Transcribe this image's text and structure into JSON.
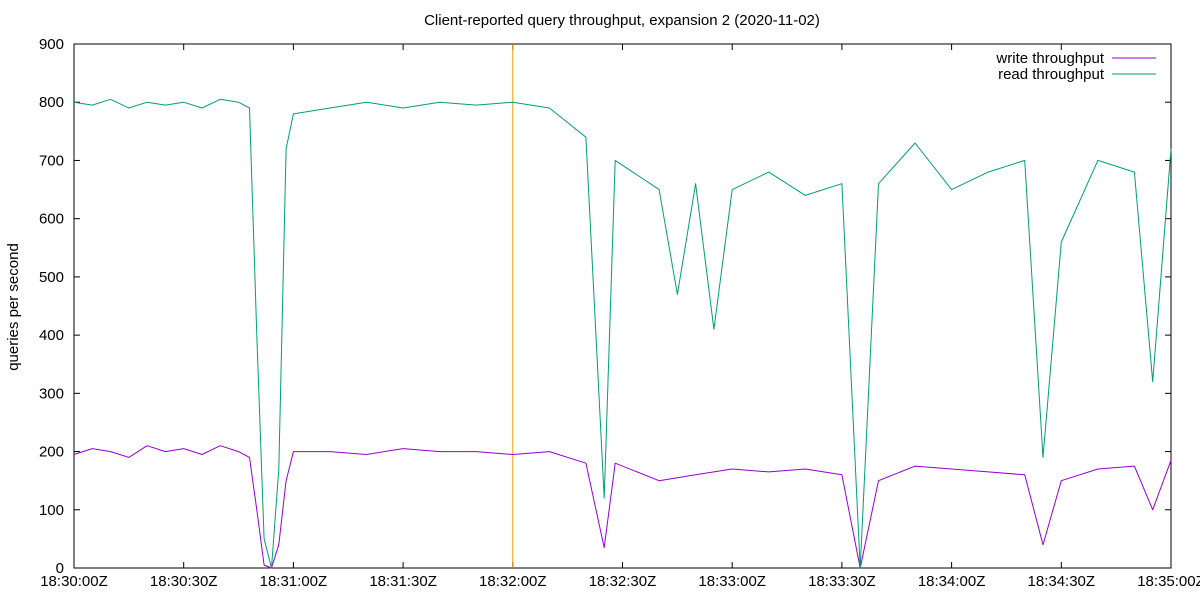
{
  "chart_data": {
    "type": "line",
    "title": "Client-reported query throughput, expansion 2 (2020-11-02)",
    "xlabel": "",
    "ylabel": "queries per second",
    "x_range": [
      "18:30:00Z",
      "18:35:00Z"
    ],
    "ylim": [
      0,
      900
    ],
    "y_ticks": [
      0,
      100,
      200,
      300,
      400,
      500,
      600,
      700,
      800,
      900
    ],
    "x_ticks": [
      "18:30:00Z",
      "18:30:30Z",
      "18:31:00Z",
      "18:31:30Z",
      "18:32:00Z",
      "18:32:30Z",
      "18:33:00Z",
      "18:33:30Z",
      "18:34:00Z",
      "18:34:30Z",
      "18:35:00Z"
    ],
    "grid": false,
    "legend_position": "top-right",
    "marker_line": {
      "x": "18:32:00Z",
      "color": "#e69f00"
    },
    "series": [
      {
        "name": "write throughput",
        "color": "#9400d3",
        "points": [
          [
            "18:30:00Z",
            195
          ],
          [
            "18:30:05Z",
            205
          ],
          [
            "18:30:10Z",
            200
          ],
          [
            "18:30:15Z",
            190
          ],
          [
            "18:30:20Z",
            210
          ],
          [
            "18:30:25Z",
            200
          ],
          [
            "18:30:30Z",
            205
          ],
          [
            "18:30:35Z",
            195
          ],
          [
            "18:30:40Z",
            210
          ],
          [
            "18:30:45Z",
            200
          ],
          [
            "18:30:48Z",
            190
          ],
          [
            "18:30:50Z",
            100
          ],
          [
            "18:30:52Z",
            5
          ],
          [
            "18:30:54Z",
            0
          ],
          [
            "18:30:56Z",
            40
          ],
          [
            "18:30:58Z",
            150
          ],
          [
            "18:31:00Z",
            200
          ],
          [
            "18:31:10Z",
            200
          ],
          [
            "18:31:20Z",
            195
          ],
          [
            "18:31:30Z",
            205
          ],
          [
            "18:31:40Z",
            200
          ],
          [
            "18:31:50Z",
            200
          ],
          [
            "18:32:00Z",
            195
          ],
          [
            "18:32:10Z",
            200
          ],
          [
            "18:32:20Z",
            180
          ],
          [
            "18:32:25Z",
            35
          ],
          [
            "18:32:28Z",
            180
          ],
          [
            "18:32:40Z",
            150
          ],
          [
            "18:32:50Z",
            160
          ],
          [
            "18:33:00Z",
            170
          ],
          [
            "18:33:10Z",
            165
          ],
          [
            "18:33:20Z",
            170
          ],
          [
            "18:33:30Z",
            160
          ],
          [
            "18:33:35Z",
            0
          ],
          [
            "18:33:40Z",
            150
          ],
          [
            "18:33:50Z",
            175
          ],
          [
            "18:34:00Z",
            170
          ],
          [
            "18:34:10Z",
            165
          ],
          [
            "18:34:20Z",
            160
          ],
          [
            "18:34:25Z",
            40
          ],
          [
            "18:34:30Z",
            150
          ],
          [
            "18:34:40Z",
            170
          ],
          [
            "18:34:50Z",
            175
          ],
          [
            "18:34:55Z",
            100
          ],
          [
            "18:35:00Z",
            185
          ]
        ]
      },
      {
        "name": "read throughput",
        "color": "#009e73",
        "points": [
          [
            "18:30:00Z",
            800
          ],
          [
            "18:30:05Z",
            795
          ],
          [
            "18:30:10Z",
            805
          ],
          [
            "18:30:15Z",
            790
          ],
          [
            "18:30:20Z",
            800
          ],
          [
            "18:30:25Z",
            795
          ],
          [
            "18:30:30Z",
            800
          ],
          [
            "18:30:35Z",
            790
          ],
          [
            "18:30:40Z",
            805
          ],
          [
            "18:30:45Z",
            800
          ],
          [
            "18:30:48Z",
            790
          ],
          [
            "18:30:50Z",
            400
          ],
          [
            "18:30:52Z",
            50
          ],
          [
            "18:30:54Z",
            0
          ],
          [
            "18:30:56Z",
            170
          ],
          [
            "18:30:58Z",
            720
          ],
          [
            "18:31:00Z",
            780
          ],
          [
            "18:31:10Z",
            790
          ],
          [
            "18:31:20Z",
            800
          ],
          [
            "18:31:30Z",
            790
          ],
          [
            "18:31:40Z",
            800
          ],
          [
            "18:31:50Z",
            795
          ],
          [
            "18:32:00Z",
            800
          ],
          [
            "18:32:10Z",
            790
          ],
          [
            "18:32:20Z",
            740
          ],
          [
            "18:32:25Z",
            120
          ],
          [
            "18:32:28Z",
            700
          ],
          [
            "18:32:40Z",
            650
          ],
          [
            "18:32:45Z",
            470
          ],
          [
            "18:32:50Z",
            660
          ],
          [
            "18:32:55Z",
            410
          ],
          [
            "18:33:00Z",
            650
          ],
          [
            "18:33:10Z",
            680
          ],
          [
            "18:33:20Z",
            640
          ],
          [
            "18:33:30Z",
            660
          ],
          [
            "18:33:35Z",
            0
          ],
          [
            "18:33:40Z",
            660
          ],
          [
            "18:33:50Z",
            730
          ],
          [
            "18:34:00Z",
            650
          ],
          [
            "18:34:10Z",
            680
          ],
          [
            "18:34:20Z",
            700
          ],
          [
            "18:34:25Z",
            190
          ],
          [
            "18:34:30Z",
            560
          ],
          [
            "18:34:40Z",
            700
          ],
          [
            "18:34:50Z",
            680
          ],
          [
            "18:34:55Z",
            320
          ],
          [
            "18:35:00Z",
            720
          ]
        ]
      }
    ]
  }
}
